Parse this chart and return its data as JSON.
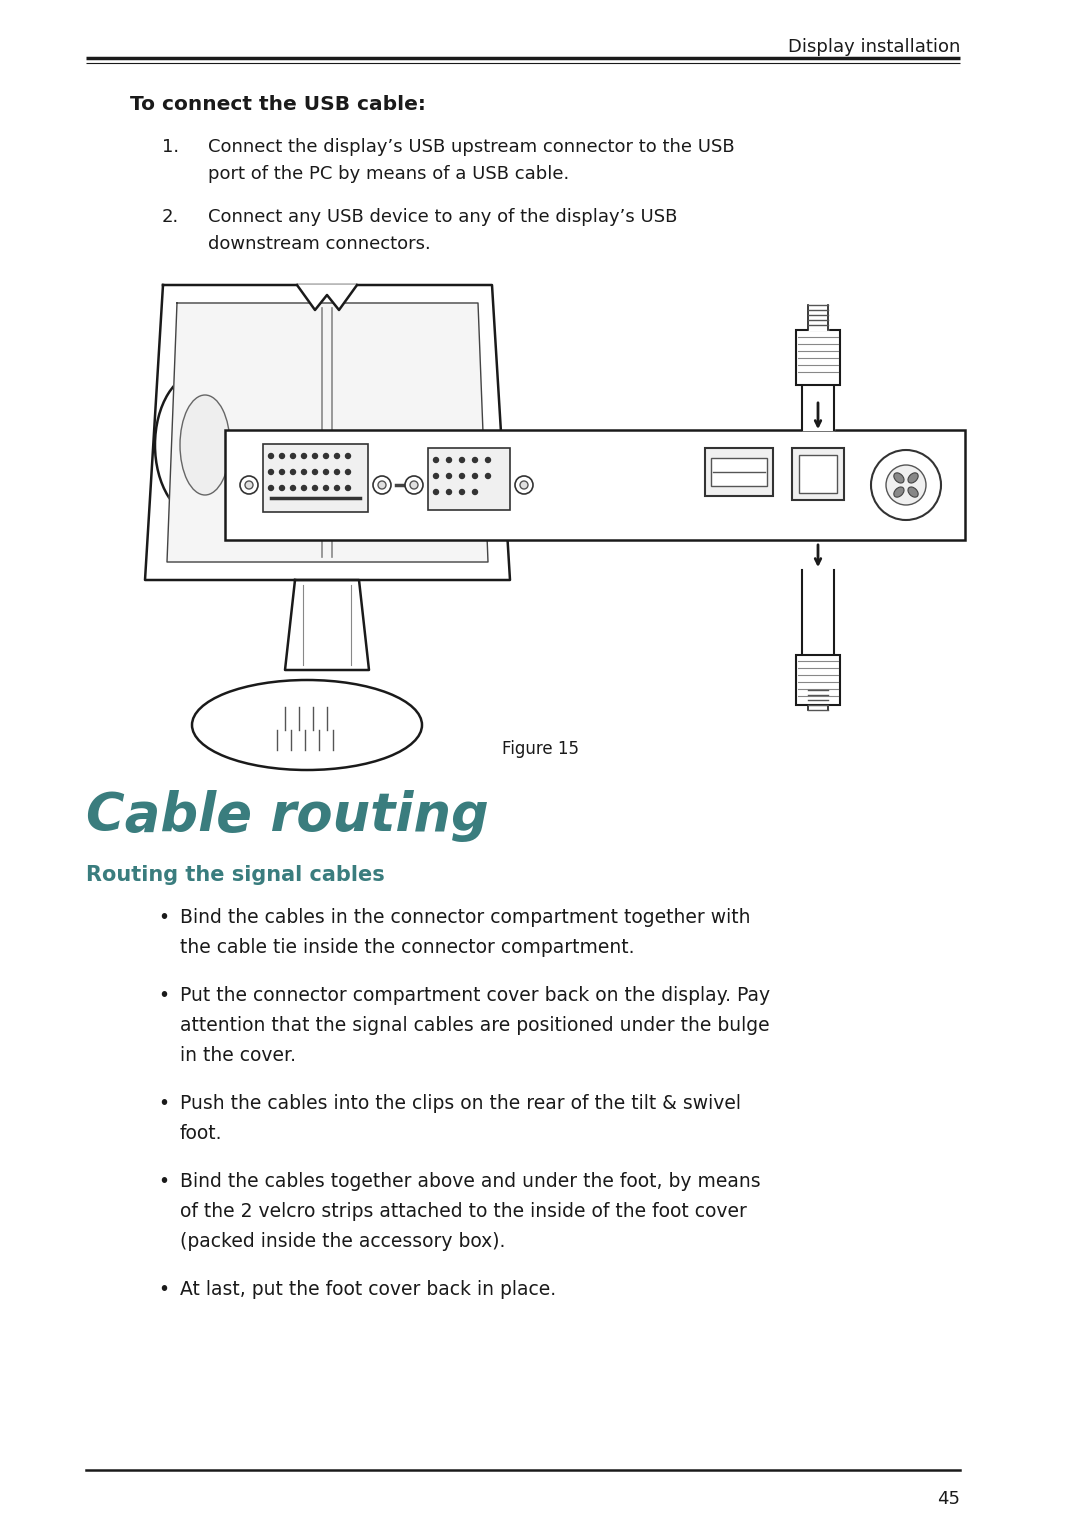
{
  "bg_color": "#ffffff",
  "header_text": "Display installation",
  "section_title": "To connect the USB cable:",
  "step1_line1": "Connect the display’s USB upstream connector to the USB",
  "step1_line2": "port of the PC by means of a USB cable.",
  "step2_line1": "Connect any USB device to any of the display’s USB",
  "step2_line2": "downstream connectors.",
  "figure_caption": "Figure 15",
  "section2_title": "Cable routing",
  "subsection2_title": "Routing the signal cables",
  "bullet1_l1": "Bind the cables in the connector compartment together with",
  "bullet1_l2": "the cable tie inside the connector compartment.",
  "bullet2_l1": "Put the connector compartment cover back on the display. Pay",
  "bullet2_l2": "attention that the signal cables are positioned under the bulge",
  "bullet2_l3": "in the cover.",
  "bullet3_l1": "Push the cables into the clips on the rear of the tilt & swivel",
  "bullet3_l2": "foot.",
  "bullet4_l1": "Bind the cables together above and under the foot, by means",
  "bullet4_l2": "of the 2 velcro strips attached to the inside of the foot cover",
  "bullet4_l3": "(packed inside the accessory box).",
  "bullet5_l1": "At last, put the foot cover back in place.",
  "footer_page": "45",
  "teal_color": "#3a7d7e",
  "black_color": "#1a1a1a",
  "line_color": "#111111"
}
